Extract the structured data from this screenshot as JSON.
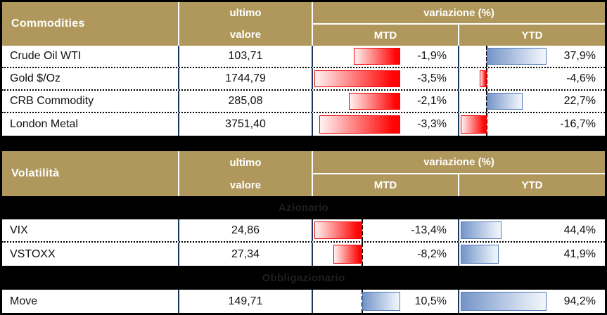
{
  "colors": {
    "header_gold": "#B0985C",
    "divider_navy": "#17375D",
    "band_background": "#000000",
    "band_text": "#1F1F1F",
    "negative_bar": "#FF0404",
    "negative_bar_border": "#F20000",
    "positive_bar": "#7494C8",
    "positive_bar_border": "#4E79B7"
  },
  "header_labels": {
    "ultimo": "ultimo",
    "valore": "valore",
    "variazione": "variazione (%)",
    "mtd": "MTD",
    "ytd": "YTD"
  },
  "tables": [
    {
      "title": "Commodities",
      "rows": [
        {
          "name": "Crude Oil WTI",
          "value": "103,71",
          "mtd": -1.9,
          "mtd_label": "-1,9%",
          "ytd": 37.9,
          "ytd_label": "37,9%"
        },
        {
          "name": "Gold $/Oz",
          "value": "1744,79",
          "mtd": -3.5,
          "mtd_label": "-3,5%",
          "ytd": -4.6,
          "ytd_label": "-4,6%"
        },
        {
          "name": "CRB Commodity",
          "value": "285,08",
          "mtd": -2.1,
          "mtd_label": "-2,1%",
          "ytd": 22.7,
          "ytd_label": "22,7%"
        },
        {
          "name": "London Metal",
          "value": "3751,40",
          "mtd": -3.3,
          "mtd_label": "-3,3%",
          "ytd": -16.7,
          "ytd_label": "-16,7%"
        }
      ]
    },
    {
      "title": "Volatilità",
      "sections": [
        {
          "band": "Azionario",
          "rows": [
            {
              "name": "VIX",
              "value": "24,86",
              "mtd": -13.4,
              "mtd_label": "-13,4%",
              "ytd": 44.4,
              "ytd_label": "44,4%"
            },
            {
              "name": "VSTOXX",
              "value": "27,34",
              "mtd": -8.2,
              "mtd_label": "-8,2%",
              "ytd": 41.9,
              "ytd_label": "41,9%"
            }
          ]
        },
        {
          "band": "Obbligazionario",
          "rows": [
            {
              "name": "Move",
              "value": "149,71",
              "mtd": 10.5,
              "mtd_label": "10,5%",
              "ytd": 94.2,
              "ytd_label": "94,2%"
            }
          ]
        }
      ]
    }
  ],
  "chart_data": [
    {
      "type": "table",
      "title": "Commodities",
      "columns": [
        "ultimo valore",
        "variazione % MTD",
        "variazione % YTD"
      ],
      "rows": [
        [
          "Crude Oil WTI",
          103.71,
          -1.9,
          37.9
        ],
        [
          "Gold $/Oz",
          1744.79,
          -3.5,
          -4.6
        ],
        [
          "CRB Commodity",
          285.08,
          -2.1,
          22.7
        ],
        [
          "London Metal",
          3751.4,
          -3.3,
          -16.7
        ]
      ],
      "notes": "data bars: negative values red, positive values blue, dashed zero axis"
    },
    {
      "type": "table",
      "title": "Volatilità",
      "columns": [
        "ultimo valore",
        "variazione % MTD",
        "variazione % YTD"
      ],
      "sections": [
        {
          "label": "Azionario",
          "rows": [
            [
              "VIX",
              24.86,
              -13.4,
              44.4
            ],
            [
              "VSTOXX",
              27.34,
              -8.2,
              41.9
            ]
          ]
        },
        {
          "label": "Obbligazionario",
          "rows": [
            [
              "Move",
              149.71,
              10.5,
              94.2
            ]
          ]
        }
      ],
      "notes": "data bars: negative values red, positive values blue, dashed zero axis"
    }
  ]
}
